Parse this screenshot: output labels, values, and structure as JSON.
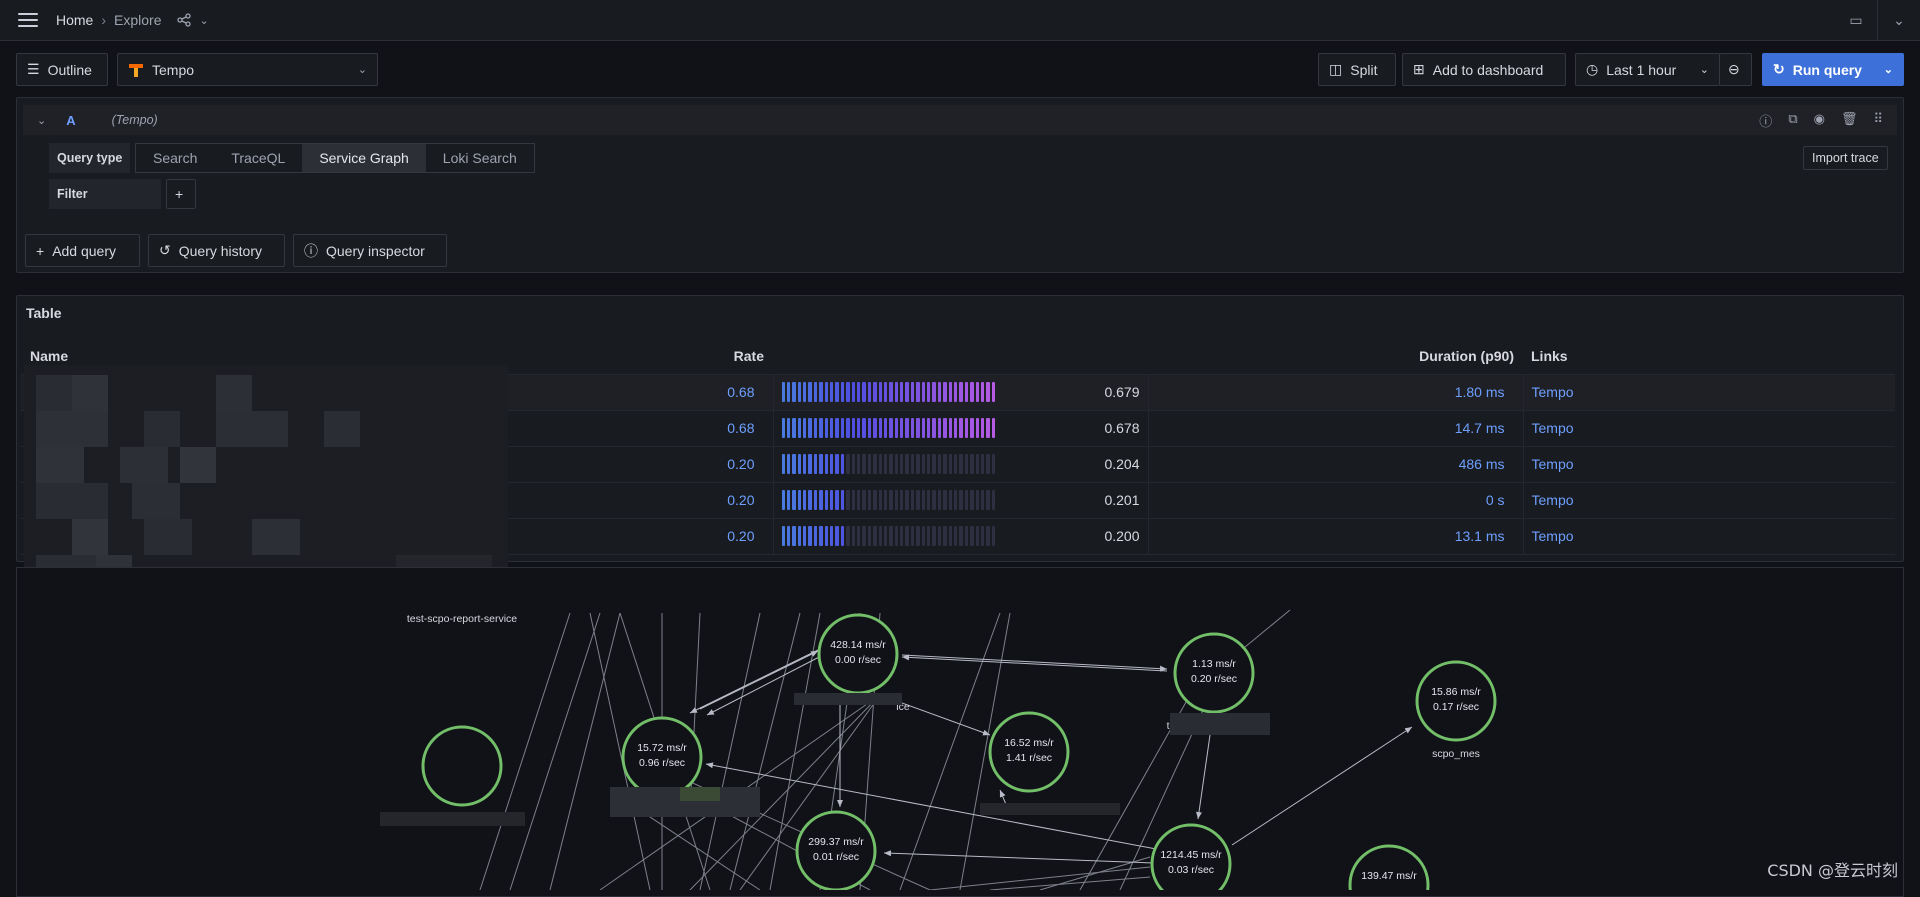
{
  "nav": {
    "home": "Home",
    "current": "Explore"
  },
  "toolbar": {
    "outline": "Outline",
    "datasource": "Tempo",
    "split": "Split",
    "add_to_dashboard": "Add to dashboard",
    "time_range": "Last 1 hour",
    "run_query": "Run query"
  },
  "query": {
    "ref": "A",
    "datasource_hint": "(Tempo)",
    "type_label": "Query type",
    "types": [
      "Search",
      "TraceQL",
      "Service Graph",
      "Loki Search"
    ],
    "active_type": "Service Graph",
    "filter_label": "Filter",
    "import_trace": "Import trace"
  },
  "actions": {
    "add_query": "Add query",
    "history": "Query history",
    "inspector": "Query inspector"
  },
  "table": {
    "title": "Table",
    "columns": [
      "Name",
      "Rate",
      "Duration (p90)",
      "Links"
    ],
    "rows": [
      {
        "rate": "0.68",
        "fraction": 0.679,
        "bar_value": "0.679",
        "duration": "1.80 ms",
        "link": "Tempo"
      },
      {
        "rate": "0.68",
        "fraction": 0.678,
        "bar_value": "0.678",
        "duration": "14.7 ms",
        "link": "Tempo"
      },
      {
        "rate": "0.20",
        "fraction": 0.204,
        "bar_value": "0.204",
        "duration": "486 ms",
        "link": "Tempo"
      },
      {
        "rate": "0.20",
        "fraction": 0.201,
        "bar_value": "0.201",
        "duration": "0 s",
        "link": "Tempo"
      },
      {
        "rate": "0.20",
        "fraction": 0.2,
        "bar_value": "0.200",
        "duration": "13.1 ms",
        "link": "Tempo"
      }
    ]
  },
  "graph": {
    "nodes": [
      {
        "id": "n1",
        "line1": "428.14 ms/r",
        "line2": "0.00 r/sec",
        "label": "ice"
      },
      {
        "id": "n2",
        "line1": "1.13 ms/r",
        "line2": "0.20 r/sec",
        "label": "te"
      },
      {
        "id": "n3",
        "line1": "15.86 ms/r",
        "line2": "0.17 r/sec",
        "label": "scpo_mes"
      },
      {
        "id": "n4",
        "line1": "15.72 ms/r",
        "line2": "0.96 r/sec",
        "label": ""
      },
      {
        "id": "n5",
        "line1": "16.52 ms/r",
        "line2": "1.41 r/sec",
        "label": ""
      },
      {
        "id": "n6",
        "line1": "",
        "line2": "",
        "label": ""
      },
      {
        "id": "n7",
        "line1": "299.37 ms/r",
        "line2": "0.01 r/sec",
        "label": ""
      },
      {
        "id": "n8",
        "line1": "1214.45 ms/r",
        "line2": "0.03 r/sec",
        "label": ""
      },
      {
        "id": "n9",
        "line1": "139.47 ms/r",
        "line2": "",
        "label": ""
      }
    ],
    "top_label": "test-scpo-report-service"
  },
  "watermark": "CSDN @登云时刻",
  "colors": {
    "accent": "#3d71d9",
    "link": "#6e9fff",
    "node": "#73bf69"
  }
}
